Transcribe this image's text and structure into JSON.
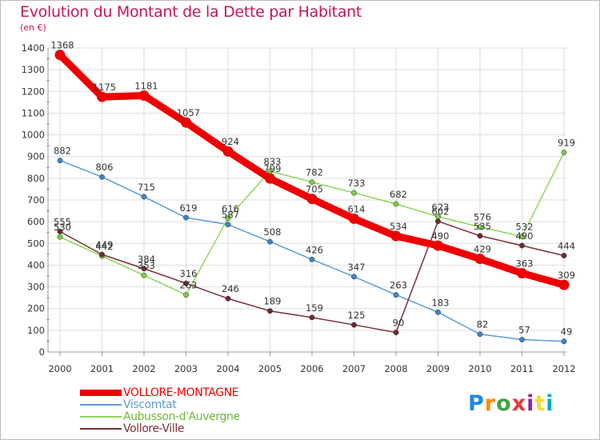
{
  "title": "Evolution du Montant de la Dette par Habitant",
  "unit_label": "(en €)",
  "brand": {
    "text": "Proxiti",
    "letters": [
      "P",
      "r",
      "o",
      "x",
      "i",
      "t",
      "i"
    ],
    "colors": [
      "#1e88e5",
      "#fb8c00",
      "#43a047",
      "#e53935",
      "#8e24aa",
      "#fdd835",
      "#00acc1"
    ]
  },
  "chart_data": {
    "type": "line",
    "title": "Evolution du Montant de la Dette par Habitant",
    "ylabel": "(en €)",
    "xlabel": "",
    "x": [
      "2000",
      "2001",
      "2002",
      "2003",
      "2004",
      "2005",
      "2006",
      "2007",
      "2008",
      "2009",
      "2010",
      "2011",
      "2012"
    ],
    "ylim": [
      0,
      1400
    ],
    "yticks": [
      0,
      100,
      200,
      300,
      400,
      500,
      600,
      700,
      800,
      900,
      1000,
      1100,
      1200,
      1300,
      1400
    ],
    "grid": true,
    "legend_position": "bottom-left",
    "series": [
      {
        "name": "VOLLORE-MONTAGNE",
        "color": "#ee0000",
        "emphasis": true,
        "values": [
          1368,
          1175,
          1181,
          1057,
          924,
          799,
          705,
          614,
          534,
          490,
          429,
          363,
          309
        ],
        "labels": [
          "1368",
          "1175",
          "1181",
          "1057",
          "924",
          "799",
          "705",
          "614",
          "534",
          "490",
          "429",
          "363",
          "309"
        ]
      },
      {
        "name": "Viscomtat",
        "color": "#5b9bd5",
        "marker_color": "#3d85c6",
        "emphasis": false,
        "values": [
          882,
          806,
          715,
          619,
          587,
          508,
          426,
          347,
          263,
          183,
          82,
          57,
          49
        ],
        "labels": [
          "882",
          "806",
          "715",
          "619",
          "587",
          "508",
          "426",
          "347",
          "263",
          "183",
          "82",
          "57",
          "49"
        ]
      },
      {
        "name": "Aubusson-d'Auvergne",
        "color": "#8fd65a",
        "marker_color": "#7ccc45",
        "emphasis": false,
        "values": [
          530,
          442,
          353,
          263,
          616,
          833,
          782,
          733,
          682,
          623,
          576,
          532,
          919
        ],
        "labels": [
          "530",
          "442",
          "353",
          "263",
          "616",
          "833",
          "782",
          "733",
          "682",
          "623",
          "576",
          "532",
          "919"
        ]
      },
      {
        "name": "Vollore-Ville",
        "color": "#7b2f34",
        "marker_color": "#6b2a2e",
        "emphasis": false,
        "values": [
          555,
          449,
          384,
          316,
          246,
          189,
          159,
          125,
          90,
          602,
          535,
          490,
          444
        ],
        "labels": [
          "555",
          "449",
          "384",
          "316",
          "246",
          "189",
          "159",
          "125",
          "90",
          "602",
          "535",
          "490",
          "444"
        ]
      }
    ]
  }
}
